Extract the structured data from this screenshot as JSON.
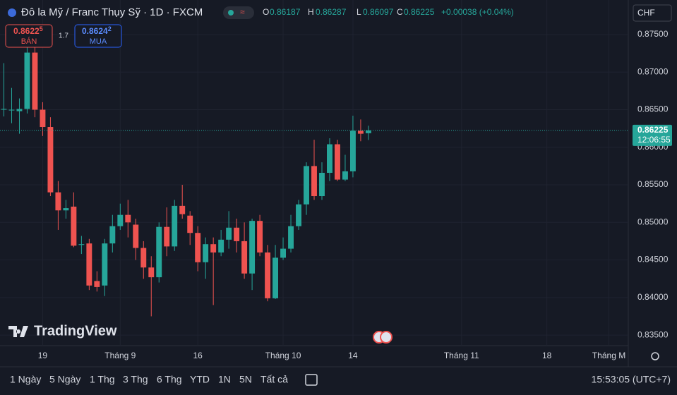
{
  "header": {
    "title": "Đô la Mỹ / Franc Thụy Sỹ · 1D · FXCM",
    "o_label": "O",
    "o_value": "0.86187",
    "h_label": "H",
    "h_value": "0.86287",
    "l_label": "L",
    "l_value": "0.86097",
    "c_label": "C",
    "c_value": "0.86225",
    "change": "+0.00038 (+0.04%)",
    "currency": "CHF",
    "sell": {
      "main": "0.8622",
      "pip": "5",
      "label": "BÁN"
    },
    "spread": "1.7",
    "buy": {
      "main": "0.8624",
      "pip": "2",
      "label": "MUA"
    },
    "price_tag": "0.86225",
    "countdown": "12:06:55",
    "logo": "TradingView"
  },
  "toolbar": {
    "ranges": [
      "1 Ngày",
      "5 Ngày",
      "1 Thg",
      "3 Thg",
      "6 Thg",
      "YTD",
      "1N",
      "5N",
      "Tất cả"
    ],
    "clock": "15:53:05 (UTC+7)"
  },
  "chart_data": {
    "type": "candlestick",
    "up_color": "#26a69a",
    "down_color": "#ef5350",
    "open": [
      0.865,
      0.8649,
      0.8648,
      0.8651,
      0.8726,
      0.865,
      0.8627,
      0.854,
      0.8516,
      0.8521,
      0.847,
      0.8472,
      0.8422,
      0.8416,
      0.8472,
      0.8495,
      0.851,
      0.8497,
      0.8466,
      0.844,
      0.8427,
      0.8494,
      0.8468,
      0.8522,
      0.8509,
      0.8486,
      0.8447,
      0.8471,
      0.846,
      0.8477,
      0.8493,
      0.8475,
      0.8432,
      0.8502,
      0.846,
      0.8399,
      0.8453,
      0.8465,
      0.8495,
      0.8524,
      0.8575,
      0.8535,
      0.8566,
      0.8604,
      0.8557,
      0.8568,
      0.8622,
      0.86187
    ],
    "high": [
      0.8712,
      0.8679,
      0.8665,
      0.8736,
      0.8736,
      0.866,
      0.864,
      0.8555,
      0.853,
      0.854,
      0.8482,
      0.8478,
      0.8435,
      0.8478,
      0.851,
      0.8525,
      0.853,
      0.8505,
      0.8475,
      0.8455,
      0.85,
      0.852,
      0.853,
      0.855,
      0.8515,
      0.8495,
      0.848,
      0.848,
      0.849,
      0.8515,
      0.8505,
      0.85,
      0.8505,
      0.851,
      0.847,
      0.847,
      0.848,
      0.851,
      0.853,
      0.858,
      0.861,
      0.858,
      0.8612,
      0.861,
      0.859,
      0.8642,
      0.8637,
      0.86287
    ],
    "low": [
      0.8641,
      0.8632,
      0.8618,
      0.8645,
      0.864,
      0.8615,
      0.8535,
      0.849,
      0.8505,
      0.8467,
      0.8458,
      0.841,
      0.8408,
      0.8402,
      0.846,
      0.849,
      0.848,
      0.845,
      0.8425,
      0.8375,
      0.842,
      0.8455,
      0.8462,
      0.8505,
      0.847,
      0.8435,
      0.8425,
      0.839,
      0.8455,
      0.8465,
      0.846,
      0.8425,
      0.841,
      0.8455,
      0.8395,
      0.8398,
      0.845,
      0.846,
      0.849,
      0.851,
      0.853,
      0.853,
      0.8555,
      0.8555,
      0.8555,
      0.856,
      0.8608,
      0.86097
    ],
    "close": [
      0.8651,
      0.865,
      0.8651,
      0.8726,
      0.865,
      0.8627,
      0.854,
      0.8516,
      0.8519,
      0.8469,
      0.8471,
      0.8416,
      0.8414,
      0.8472,
      0.8495,
      0.851,
      0.85,
      0.8466,
      0.844,
      0.8427,
      0.8494,
      0.8468,
      0.8522,
      0.8511,
      0.8486,
      0.8447,
      0.8471,
      0.846,
      0.8477,
      0.8493,
      0.8475,
      0.8432,
      0.8502,
      0.846,
      0.8399,
      0.8453,
      0.8465,
      0.8495,
      0.8524,
      0.8575,
      0.8535,
      0.8566,
      0.8604,
      0.8557,
      0.8568,
      0.8622,
      0.8618,
      0.86225
    ],
    "xlim": [
      -0.5,
      80.5
    ],
    "xticks": [
      {
        "value": 5,
        "label": "19"
      },
      {
        "value": 15,
        "label": "Tháng 9"
      },
      {
        "value": 25,
        "label": "16"
      },
      {
        "value": 36,
        "label": "Tháng 10"
      },
      {
        "value": 45,
        "label": "14"
      },
      {
        "value": 59,
        "label": "Tháng 11"
      },
      {
        "value": 70,
        "label": "18"
      },
      {
        "value": 78,
        "label": "Tháng M"
      }
    ],
    "ylim": [
      0.8336,
      0.8796
    ],
    "yticks": [
      {
        "value": 0.835,
        "label": "0.83500"
      },
      {
        "value": 0.84,
        "label": "0.84000"
      },
      {
        "value": 0.845,
        "label": "0.84500"
      },
      {
        "value": 0.85,
        "label": "0.85000"
      },
      {
        "value": 0.855,
        "label": "0.85500"
      },
      {
        "value": 0.86,
        "label": "0.86000"
      },
      {
        "value": 0.865,
        "label": "0.86500"
      },
      {
        "value": 0.87,
        "label": "0.87000"
      },
      {
        "value": 0.875,
        "label": "0.87500"
      }
    ]
  }
}
